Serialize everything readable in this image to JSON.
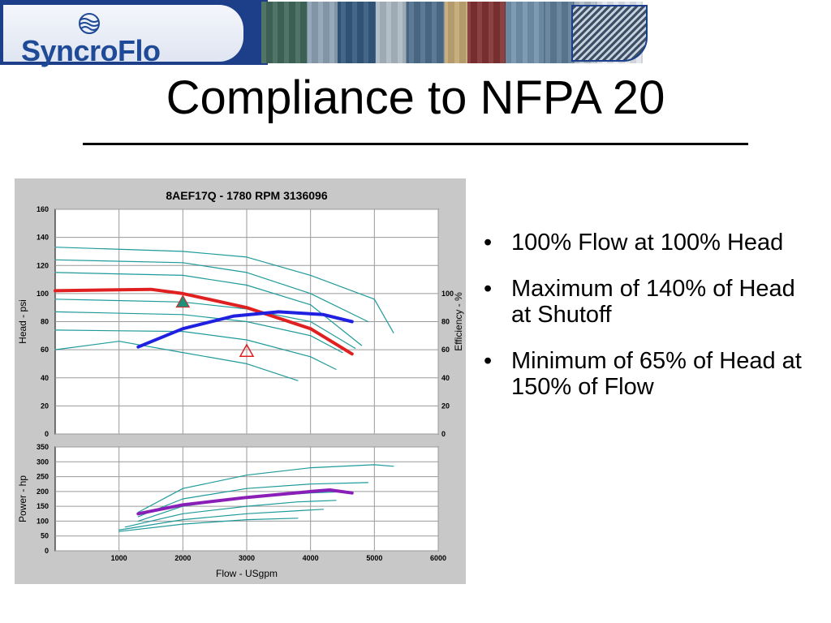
{
  "banner": {
    "logo_text": "SyncroFlo"
  },
  "title": "Compliance to NFPA 20",
  "bullets": [
    "100% Flow at 100% Head",
    "Maximum of 140% of Head at Shutoff",
    "Minimum of 65% of Head at 150% of Flow"
  ],
  "chart_data": {
    "type": "line",
    "title": "8AEF17Q - 1780 RPM     3136096",
    "xlabel": "Flow - USgpm",
    "xlim": [
      0,
      6000
    ],
    "x_ticks": [
      1000,
      2000,
      3000,
      4000,
      5000,
      6000
    ],
    "head_panel": {
      "ylabel": "Head - psi",
      "y2label": "Efficiency - %",
      "ylim": [
        0,
        160
      ],
      "y_ticks": [
        0,
        20,
        40,
        60,
        80,
        100,
        120,
        140,
        160
      ],
      "y2_ticks": [
        0,
        20,
        40,
        60,
        80,
        100
      ],
      "grid": true,
      "series": [
        {
          "color": "#1f9a9a",
          "points": [
            [
              0,
              133
            ],
            [
              2000,
              130
            ],
            [
              3000,
              126
            ],
            [
              4000,
              113
            ],
            [
              5000,
              96
            ],
            [
              5300,
              72
            ]
          ]
        },
        {
          "color": "#1f9a9a",
          "points": [
            [
              0,
              124
            ],
            [
              2000,
              122
            ],
            [
              3000,
              115
            ],
            [
              4000,
              100
            ],
            [
              4900,
              80
            ]
          ]
        },
        {
          "color": "#1f9a9a",
          "points": [
            [
              0,
              115
            ],
            [
              2000,
              113
            ],
            [
              3000,
              106
            ],
            [
              4000,
              92
            ],
            [
              4800,
              63
            ]
          ]
        },
        {
          "color": "#1f9a9a",
          "points": [
            [
              0,
              96
            ],
            [
              2000,
              94
            ],
            [
              3000,
              89
            ],
            [
              4000,
              80
            ],
            [
              4700,
              61
            ]
          ]
        },
        {
          "color": "#1f9a9a",
          "points": [
            [
              0,
              87
            ],
            [
              2000,
              85
            ],
            [
              3000,
              80
            ],
            [
              4000,
              70
            ],
            [
              4500,
              58
            ]
          ]
        },
        {
          "color": "#1f9a9a",
          "points": [
            [
              0,
              74
            ],
            [
              2000,
              73
            ],
            [
              3000,
              67
            ],
            [
              4000,
              55
            ],
            [
              4400,
              46
            ]
          ]
        },
        {
          "color": "#1f9a9a",
          "points": [
            [
              0,
              60
            ],
            [
              1000,
              66
            ],
            [
              2000,
              58
            ],
            [
              3000,
              50
            ],
            [
              3800,
              38
            ]
          ]
        },
        {
          "color": "#e02020",
          "points": [
            [
              0,
              102
            ],
            [
              1500,
              103
            ],
            [
              2000,
              100
            ],
            [
              3000,
              90
            ],
            [
              4000,
              75
            ],
            [
              4650,
              57
            ]
          ]
        },
        {
          "color": "#2020e0",
          "points": [
            [
              1300,
              62
            ],
            [
              2000,
              75
            ],
            [
              2800,
              84
            ],
            [
              3500,
              87
            ],
            [
              4200,
              85
            ],
            [
              4650,
              80
            ]
          ]
        }
      ],
      "markers": [
        {
          "shape": "triangle-filled",
          "x": 2000,
          "y": 94,
          "color": "#1f8f7a"
        },
        {
          "shape": "triangle-open",
          "x": 3000,
          "y": 59,
          "color": "#e02020"
        }
      ]
    },
    "power_panel": {
      "ylabel": "Power - hp",
      "ylim": [
        0,
        350
      ],
      "y_ticks": [
        0,
        50,
        100,
        150,
        200,
        250,
        300,
        350
      ],
      "grid": true,
      "series": [
        {
          "color": "#1f9a9a",
          "points": [
            [
              1300,
              130
            ],
            [
              2000,
              210
            ],
            [
              3000,
              255
            ],
            [
              4000,
              280
            ],
            [
              5000,
              290
            ],
            [
              5300,
              285
            ]
          ]
        },
        {
          "color": "#1f9a9a",
          "points": [
            [
              1300,
              115
            ],
            [
              2000,
              175
            ],
            [
              3000,
              210
            ],
            [
              4000,
              225
            ],
            [
              4900,
              230
            ]
          ]
        },
        {
          "color": "#1f9a9a",
          "points": [
            [
              1300,
              100
            ],
            [
              2000,
              150
            ],
            [
              3000,
              180
            ],
            [
              4000,
              195
            ],
            [
              4600,
              200
            ]
          ]
        },
        {
          "color": "#1f9a9a",
          "points": [
            [
              1100,
              80
            ],
            [
              2000,
              125
            ],
            [
              3000,
              150
            ],
            [
              3800,
              165
            ],
            [
              4400,
              170
            ]
          ]
        },
        {
          "color": "#1f9a9a",
          "points": [
            [
              1000,
              70
            ],
            [
              2000,
              105
            ],
            [
              3000,
              125
            ],
            [
              3800,
              135
            ],
            [
              4200,
              140
            ]
          ]
        },
        {
          "color": "#1f9a9a",
          "points": [
            [
              1000,
              65
            ],
            [
              2000,
              90
            ],
            [
              3000,
              105
            ],
            [
              3800,
              110
            ]
          ]
        },
        {
          "color": "#8a1fb8",
          "points": [
            [
              1300,
              125
            ],
            [
              2000,
              155
            ],
            [
              3000,
              180
            ],
            [
              4000,
              200
            ],
            [
              4300,
              205
            ],
            [
              4650,
              195
            ]
          ]
        }
      ]
    }
  }
}
